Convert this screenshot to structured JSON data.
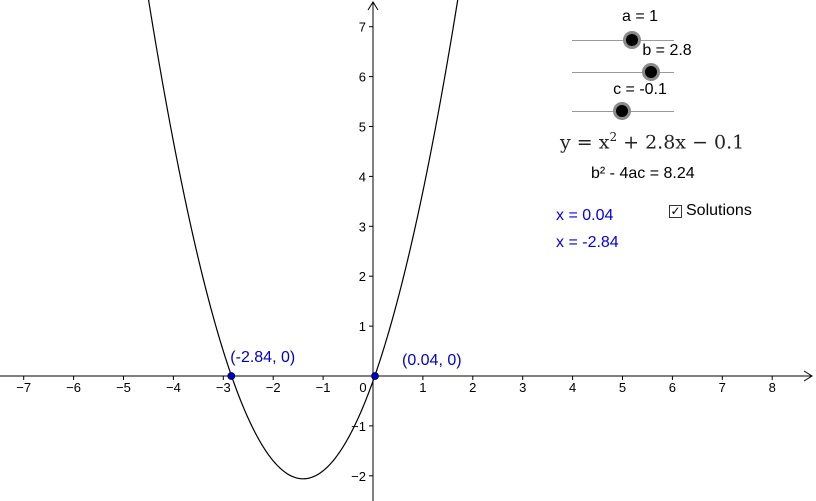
{
  "sliders": [
    {
      "label": "a = 1",
      "value": 1
    },
    {
      "label": "b = 2.8",
      "value": 2.8
    },
    {
      "label": "c = -0.1",
      "value": -0.1
    }
  ],
  "equation": {
    "prefix": "y = x",
    "exponent": "2",
    "suffix": " + 2.8x − 0.1"
  },
  "discriminant": "b² - 4ac = 8.24",
  "solutions": {
    "checkbox_label": "Solutions",
    "checked": true,
    "checkmark": "✓",
    "x1": "x = 0.04",
    "x2": "x = -2.84"
  },
  "points": [
    {
      "label": "(-2.84, 0)",
      "x": -2.84,
      "y": 0
    },
    {
      "label": "(0.04, 0)",
      "x": 0.04,
      "y": 0
    }
  ],
  "chart_data": {
    "type": "line",
    "function": {
      "a": 1,
      "b": 2.8,
      "c": -0.1
    },
    "xlim": [
      -7.5,
      8.8
    ],
    "ylim": [
      -2.5,
      7.5
    ],
    "x_ticks": [
      -7,
      -6,
      -5,
      -4,
      -3,
      -2,
      -1,
      0,
      1,
      2,
      3,
      4,
      5,
      6,
      7,
      8
    ],
    "y_ticks": [
      -2,
      -1,
      1,
      2,
      3,
      4,
      5,
      6,
      7
    ],
    "grid": false,
    "colors": {
      "curve": "#000000",
      "points": "#0000cc",
      "axis": "#000000"
    }
  }
}
